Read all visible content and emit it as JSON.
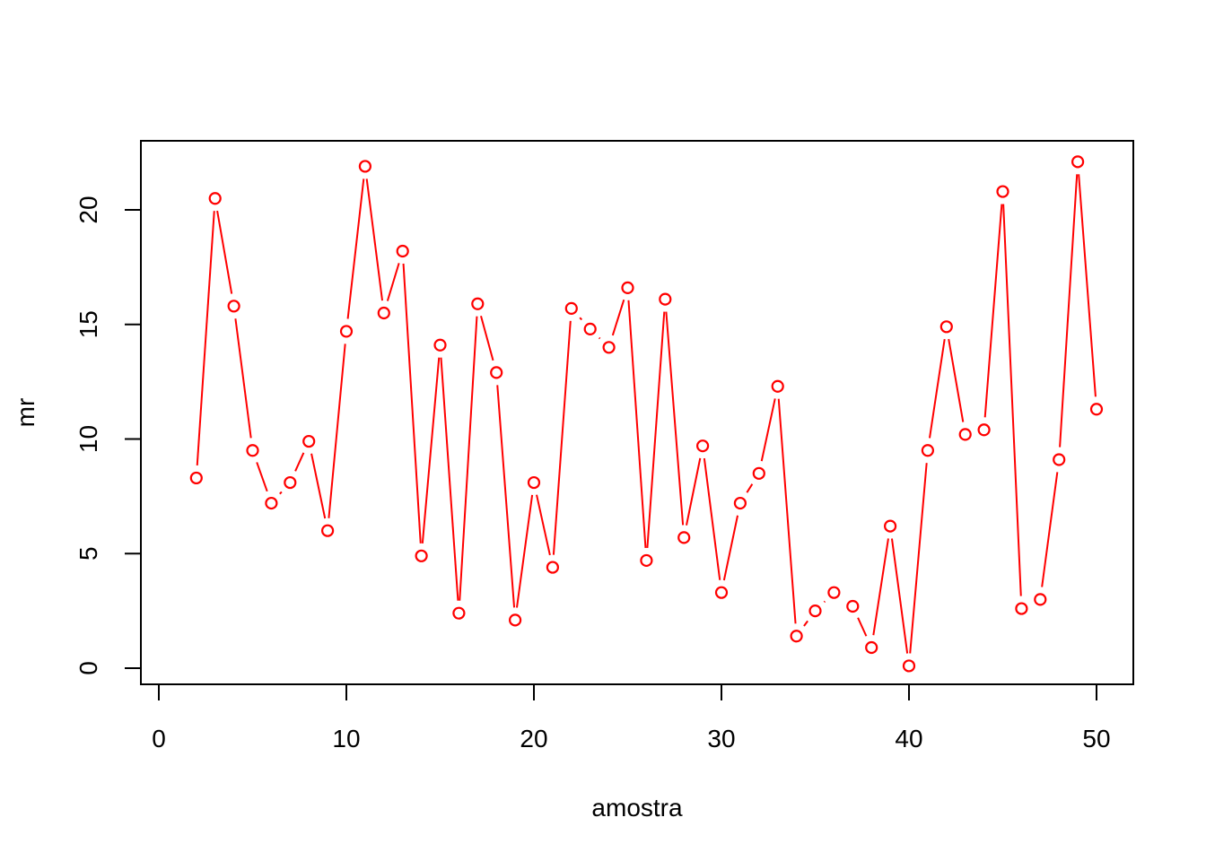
{
  "chart_data": {
    "type": "line",
    "title": "",
    "xlabel": "amostra",
    "ylabel": "mr",
    "xlim": [
      0,
      50
    ],
    "ylim": [
      0,
      22
    ],
    "x_ticks": [
      0,
      10,
      20,
      30,
      40,
      50
    ],
    "y_ticks": [
      0,
      5,
      10,
      15,
      20
    ],
    "grid": false,
    "color": "#FF0000",
    "series": [
      {
        "x": [
          2,
          3,
          4,
          5,
          6,
          7,
          8,
          9,
          10,
          11,
          12,
          13,
          14,
          15,
          16,
          17,
          18,
          19,
          20,
          21,
          22,
          23,
          24,
          25,
          26,
          27,
          28,
          29,
          30,
          31,
          32,
          33,
          34,
          35,
          36,
          37,
          38,
          39,
          40,
          41,
          42,
          43,
          44,
          45,
          46,
          47,
          48,
          49,
          50
        ],
        "values": [
          8.3,
          20.5,
          15.8,
          9.5,
          7.2,
          8.1,
          9.9,
          6.0,
          14.7,
          21.9,
          15.5,
          18.2,
          4.9,
          14.1,
          2.4,
          15.9,
          12.9,
          2.1,
          8.1,
          4.4,
          15.7,
          14.8,
          14.0,
          16.6,
          4.7,
          16.1,
          5.7,
          9.7,
          3.3,
          7.2,
          8.5,
          12.3,
          1.4,
          2.5,
          3.3,
          2.7,
          0.9,
          6.2,
          0.1,
          9.5,
          14.9,
          10.2,
          10.4,
          20.8,
          2.6,
          3.0,
          9.1,
          22.1,
          11.3
        ]
      }
    ]
  }
}
